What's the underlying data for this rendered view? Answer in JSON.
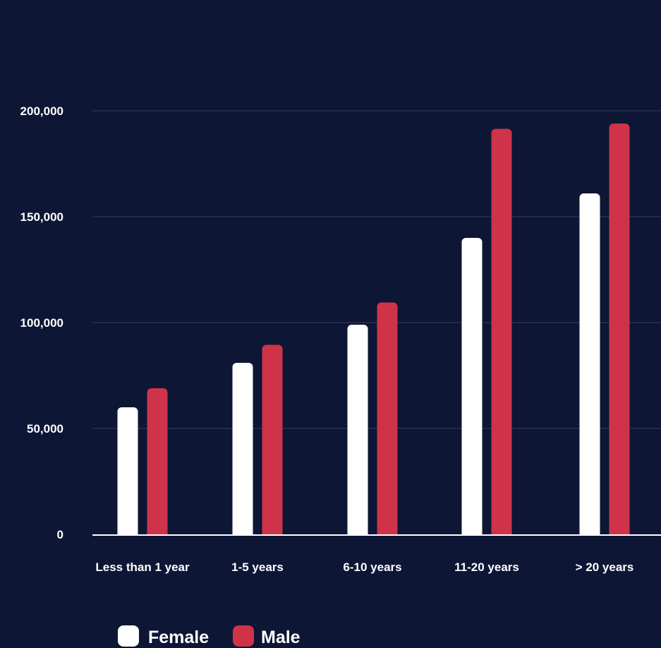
{
  "chart_data": {
    "type": "bar",
    "title": "",
    "xlabel": "",
    "ylabel": "",
    "categories": [
      "Less than 1 year",
      "1-5 years",
      "6-10 years",
      "11-20 years",
      "> 20 years"
    ],
    "series": [
      {
        "name": "Female",
        "color": "#ffffff",
        "values": [
          60000,
          81000,
          99000,
          140000,
          161000
        ]
      },
      {
        "name": "Male",
        "color": "#cf3349",
        "values": [
          69000,
          89500,
          109500,
          191500,
          194000
        ]
      }
    ],
    "ylim": [
      0,
      200000
    ],
    "yticks": [
      "0",
      "50,000",
      "100,000",
      "150,000",
      "200,000"
    ],
    "ytick_values": [
      0,
      50000,
      100000,
      150000,
      200000
    ],
    "grid": true,
    "legend_position": "bottom-left",
    "colors": {
      "background": "#0d1635",
      "gridline": "#2e3757",
      "axis": "#ffffff",
      "text": "#ffffff"
    }
  }
}
